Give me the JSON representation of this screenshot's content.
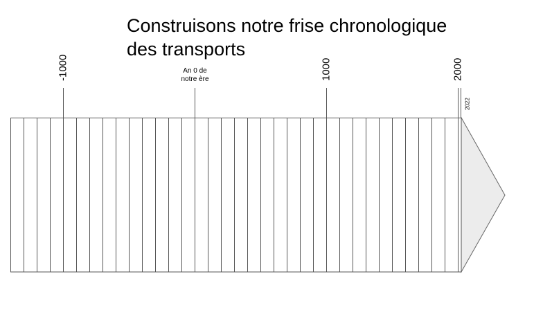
{
  "title": "Construisons notre frise chronologique des transports",
  "timeline": {
    "ticks": [
      -1000,
      {
        "value": 0,
        "label": "An 0 de notre ère"
      },
      1000,
      2000
    ],
    "end": 2022
  }
}
